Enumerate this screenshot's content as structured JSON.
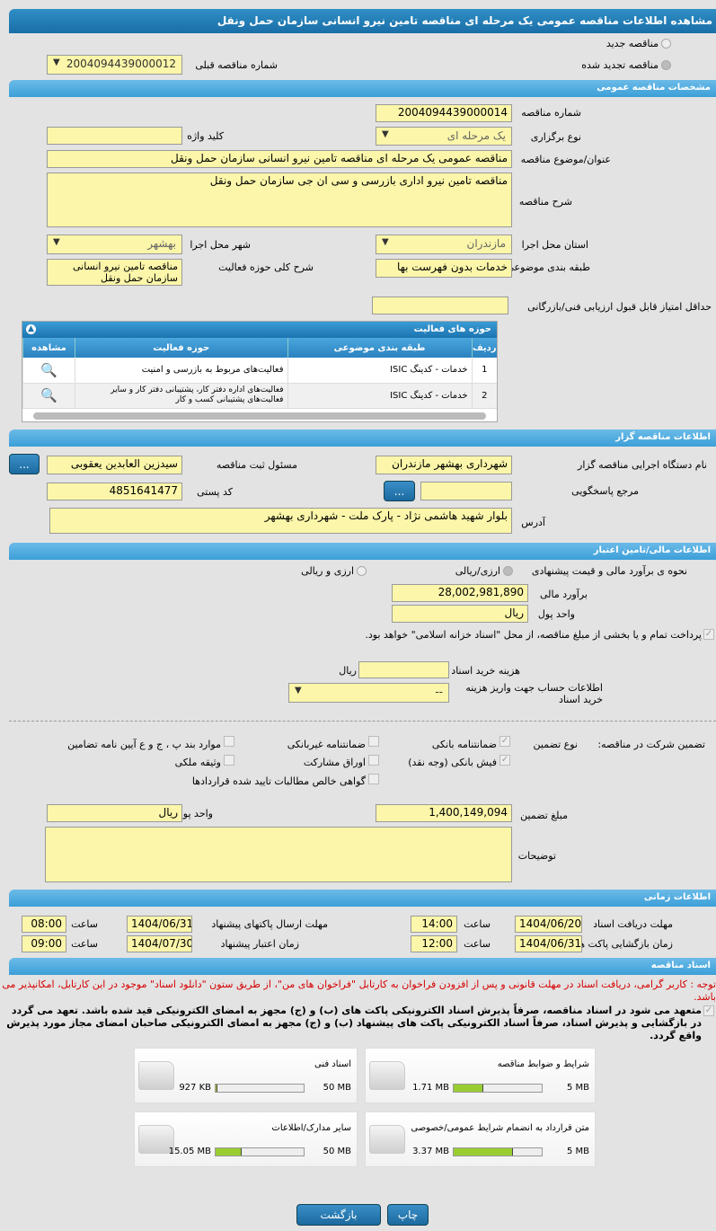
{
  "title": "مشاهده اطلاعات مناقصه عمومی یک مرحله ای مناقصه تامین نیرو انسانی سازمان حمل ونقل",
  "top": {
    "new_label": "مناقصه جدید",
    "renewed_label": "مناقصه تجدید شده",
    "prev_label": "شماره مناقصه قبلی",
    "prev_value": "2004094439000012"
  },
  "general": {
    "header": "مشخصات مناقصه عمومی",
    "number_label": "شماره مناقصه",
    "number": "2004094439000014",
    "type_label": "نوع برگزاری",
    "type": "یک مرحله ای",
    "keyword_label": "کلید واژه",
    "keyword": "",
    "subject_label": "عنوان/موضوع مناقصه",
    "subject": "مناقصه عمومی یک مرحله ای مناقصه تامین نیرو انسانی سازمان حمل ونقل",
    "desc_label": "شرح مناقصه",
    "desc": "مناقصه تامین نیرو اداری بازرسی و سی ان جی سازمان حمل ونقل",
    "province_label": "استان محل اجرا",
    "province": "مازندران",
    "city_label": "شهر محل اجرا",
    "city": "بهشهر",
    "category_label": "طبقه بندی موضوعی",
    "category": "خدمات بدون فهرست بها",
    "scope_label": "شرح کلی حوزه فعالیت",
    "scope": "مناقصه تامین نیرو انسانی سازمان حمل ونقل",
    "minscore_label": "حداقل امتیاز قابل قبول ارزیابی فنی/بازرگانی",
    "minscore": ""
  },
  "activity": {
    "header": "حوزه های فعالیت",
    "columns": [
      "ردیف",
      "طبقه بندی موضوعی",
      "حوزه فعالیت",
      "مشاهده"
    ],
    "rows": [
      {
        "n": "1",
        "cat": "خدمات - کدینگ ISIC",
        "field": "فعالیت‌های مربوط به بازرسی و امنیت"
      },
      {
        "n": "2",
        "cat": "خدمات - کدینگ ISIC",
        "field": "فعالیت‌های اداره دفتر کار، پشتیبانی دفتر کار و سایر فعالیت‌های پشتیبانی کسب و کار"
      }
    ]
  },
  "organizer": {
    "header": "اطلاعات مناقصه گزار",
    "org_label": "نام دستگاه اجرایی مناقصه گزار",
    "org": "شهرداری بهشهر مازندران",
    "resp_label": "مسئول ثبت مناقصه",
    "resp": "سیدزین العابدین یعقوبی",
    "ref_label": "مرجع پاسخگویی",
    "ref": "",
    "postal_label": "کد پستی",
    "postal": "4851641477",
    "address_label": "آدرس",
    "address": "بلوار شهید هاشمی نژاد - پارک ملت - شهرداری بهشهر",
    "more": "..."
  },
  "finance": {
    "header": "اطلاعات مالی/تامین اعتبار",
    "method_label": "نحوه ی برآورد مالی و قیمت پیشنهادی",
    "opt1": "ارزی/ریالی",
    "opt2": "ارزی و ریالی",
    "estimate_label": "برآورد مالی",
    "estimate": "28,002,981,890",
    "currency_label": "واحد پول",
    "currency": "ریال",
    "treasury_text": "پرداخت تمام و یا بخشی از مبلغ مناقصه، از محل \"اسناد خزانه اسلامی\" خواهد بود.",
    "doc_cost_label": "هزینه خرید اسناد",
    "doc_cost": "",
    "doc_cost_unit": "ریال",
    "account_label": "اطلاعات حساب جهت واریز هزینه خرید اسناد",
    "account": "--"
  },
  "guarantee": {
    "label": "تضمین شرکت در مناقصه:",
    "type_label": "نوع تضمین",
    "options": [
      "ضمانتنامه بانکی",
      "ضمانتنامه غیربانکی",
      "موارد بند پ ، ج و ع آیین نامه تضامین",
      "فیش بانکی (وجه نقد)",
      "اوراق مشارکت",
      "وثیقه ملکی",
      "گواهی خالص مطالبات تایید شده قراردادها"
    ],
    "amount_label": "مبلغ تضمین",
    "amount": "1,400,149,094",
    "currency_label": "واحد پول",
    "currency": "ریال",
    "notes_label": "توضیحات",
    "notes": ""
  },
  "timing": {
    "header": "اطلاعات زمانی",
    "receive_label": "مهلت دریافت اسناد",
    "receive_date": "1404/06/20",
    "receive_time": "14:00",
    "send_label": "مهلت ارسال پاکتهای پیشنهاد",
    "send_date": "1404/06/31",
    "send_time": "08:00",
    "open_label": "زمان بازگشایی پاکت ها",
    "open_date": "1404/06/31",
    "open_time": "12:00",
    "valid_label": "زمان اعتبار پیشنهاد",
    "valid_date": "1404/07/30",
    "valid_time": "09:00",
    "time_label": "ساعت"
  },
  "docs": {
    "header": "اسناد مناقصه",
    "note": "توجه : کاربر گرامی، دریافت اسناد در مهلت قانونی و پس از افزودن فراخوان به کارتابل \"فراخوان های من\"، از طریق ستون \"دانلود اسناد\" موجود در این کارتابل، امکانپذیر می باشد.",
    "commit": "متعهد می شود در اسناد مناقصه، صرفاً پذیرش اسناد الکترونیکی پاکت های (ب) و (ج) مجهز به امضای الکترونیکی قید شده باشد. تعهد می گردد در بازگشایی و پذیرش اسناد، صرفاً اسناد الکترونیکی پاکت های پیشنهاد (ب) و (ج) مجهز به امضای الکترونیکی صاحبان امضای مجاز مورد پذیرش واقع گردد.",
    "files": [
      {
        "name": "شرایط و ضوابط مناقصه",
        "size": "1.71 MB",
        "max": "5 MB",
        "fraction": 0.34
      },
      {
        "name": "اسناد فنی",
        "size": "927 KB",
        "max": "50 MB",
        "fraction": 0.018
      },
      {
        "name": "متن قرارداد به انضمام شرایط عمومی/خصوصی",
        "size": "3.37 MB",
        "max": "5 MB",
        "fraction": 0.67
      },
      {
        "name": "سایر مدارک/اطلاعات",
        "size": "15.05 MB",
        "max": "50 MB",
        "fraction": 0.3
      }
    ]
  },
  "buttons": {
    "back": "بازگشت",
    "print": "چاپ"
  }
}
